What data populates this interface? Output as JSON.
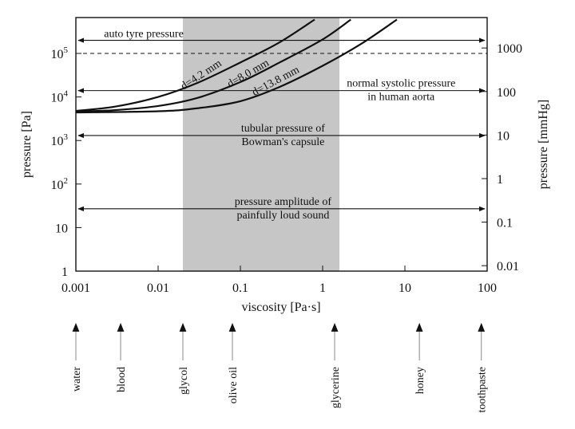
{
  "chart_data": {
    "type": "line",
    "xlabel": "viscosity [Pa·s]",
    "ylabel": "pressure [Pa]",
    "ylabel_right": "pressure [mmHg]",
    "x_scale": "log",
    "y_scale": "log",
    "xlim": [
      0.001,
      100
    ],
    "ylim": [
      1,
      600000
    ],
    "x_ticks": [
      {
        "value": 0.001,
        "label": "0.001"
      },
      {
        "value": 0.01,
        "label": "0.01"
      },
      {
        "value": 0.1,
        "label": "0.1"
      },
      {
        "value": 1,
        "label": "1"
      },
      {
        "value": 10,
        "label": "10"
      },
      {
        "value": 100,
        "label": "100"
      }
    ],
    "y_ticks": [
      {
        "value": 1,
        "base": "1",
        "exp": ""
      },
      {
        "value": 10,
        "base": "10",
        "exp": ""
      },
      {
        "value": 100,
        "base": "10",
        "exp": "2"
      },
      {
        "value": 1000,
        "base": "10",
        "exp": "3"
      },
      {
        "value": 10000,
        "base": "10",
        "exp": "4"
      },
      {
        "value": 100000,
        "base": "10",
        "exp": "5"
      }
    ],
    "y_right_ticks": [
      {
        "mmhg": 0.01,
        "label": "0.01"
      },
      {
        "mmhg": 0.1,
        "label": "0.1"
      },
      {
        "mmhg": 1,
        "label": "1"
      },
      {
        "mmhg": 10,
        "label": "10"
      },
      {
        "mmhg": 100,
        "label": "100"
      },
      {
        "mmhg": 1000,
        "label": "1000"
      }
    ],
    "shaded_region": {
      "x": [
        0.02,
        1.6
      ],
      "color": "#c6c6c6"
    },
    "dashed_line": {
      "y": 100000
    },
    "series": [
      {
        "name": "d=4.2 mm",
        "x": [
          0.001,
          0.003,
          0.01,
          0.03,
          0.1,
          0.3,
          0.8
        ],
        "y": [
          4800,
          6000,
          10000,
          21000,
          62000,
          180000,
          600000
        ]
      },
      {
        "name": "d=8.0 mm",
        "x": [
          0.001,
          0.003,
          0.01,
          0.03,
          0.1,
          0.3,
          1,
          2.2
        ],
        "y": [
          4600,
          5000,
          6200,
          9500,
          22000,
          62000,
          210000,
          600000
        ]
      },
      {
        "name": "d=13.8 mm",
        "x": [
          0.001,
          0.01,
          0.03,
          0.1,
          0.3,
          1,
          3,
          8
        ],
        "y": [
          4400,
          4700,
          5500,
          8000,
          17000,
          52000,
          170000,
          600000
        ]
      }
    ],
    "annotations": [
      {
        "text": [
          "auto tyre pressure"
        ],
        "y": 200000,
        "label_x": 0.0022,
        "align": "start"
      },
      {
        "text": [
          "normal systolic pressure",
          "in human aorta"
        ],
        "y": 14000,
        "label_x": 9,
        "align": "middle"
      },
      {
        "text": [
          "tubular pressure of",
          "Bowman's capsule"
        ],
        "y": 1300,
        "label_x": 0.33,
        "align": "middle"
      },
      {
        "text": [
          "pressure amplitude of",
          "painfully loud sound"
        ],
        "y": 27,
        "label_x": 0.33,
        "align": "middle"
      }
    ],
    "substances": [
      {
        "name": "water",
        "viscosity": 0.001
      },
      {
        "name": "blood",
        "viscosity": 0.0035
      },
      {
        "name": "glycol",
        "viscosity": 0.02
      },
      {
        "name": "olive oil",
        "viscosity": 0.08
      },
      {
        "name": "glycerine",
        "viscosity": 1.4
      },
      {
        "name": "honey",
        "viscosity": 15
      },
      {
        "name": "toothpaste",
        "viscosity": 85
      }
    ]
  }
}
